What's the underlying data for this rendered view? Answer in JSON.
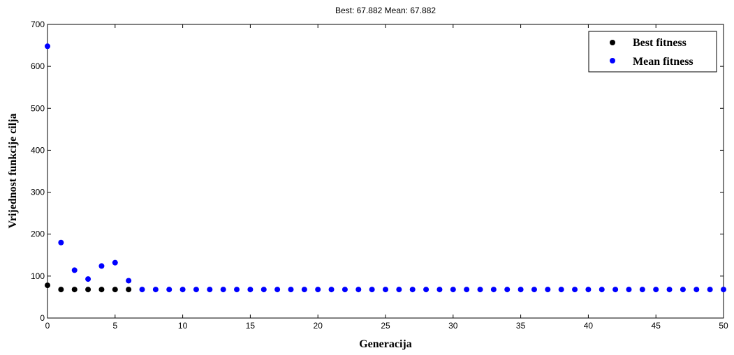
{
  "chart_data": {
    "type": "scatter",
    "title": "Best: 67.882 Mean: 67.882",
    "xlabel": "Generacija",
    "ylabel": "Vrijednost funkcije cilja",
    "xlim": [
      0,
      50
    ],
    "ylim": [
      0,
      700
    ],
    "xticks": [
      "0",
      "5",
      "10",
      "15",
      "20",
      "25",
      "30",
      "35",
      "40",
      "45",
      "50"
    ],
    "yticks": [
      "0",
      "100",
      "200",
      "300",
      "400",
      "500",
      "600",
      "700"
    ],
    "grid": false,
    "legend_position": "top-right",
    "series": [
      {
        "name": "Best fitness",
        "color": "#000000",
        "x": [
          0,
          1,
          2,
          3,
          4,
          5,
          6
        ],
        "y": [
          78,
          68,
          68,
          68,
          68,
          68,
          68
        ]
      },
      {
        "name": "Mean fitness",
        "color": "#0000ff",
        "x": [
          0,
          1,
          2,
          3,
          4,
          5,
          6,
          7,
          8,
          9,
          10,
          11,
          12,
          13,
          14,
          15,
          16,
          17,
          18,
          19,
          20,
          21,
          22,
          23,
          24,
          25,
          26,
          27,
          28,
          29,
          30,
          31,
          32,
          33,
          34,
          35,
          36,
          37,
          38,
          39,
          40,
          41,
          42,
          43,
          44,
          45,
          46,
          47,
          48,
          49,
          50
        ],
        "y": [
          648,
          180,
          114,
          93,
          124,
          132,
          89,
          68,
          68,
          68,
          68,
          68,
          68,
          68,
          68,
          68,
          68,
          68,
          68,
          68,
          68,
          68,
          68,
          68,
          68,
          68,
          68,
          68,
          68,
          68,
          68,
          68,
          68,
          68,
          68,
          68,
          68,
          68,
          68,
          68,
          68,
          68,
          68,
          68,
          68,
          68,
          68,
          68,
          68,
          68,
          68
        ]
      }
    ]
  }
}
